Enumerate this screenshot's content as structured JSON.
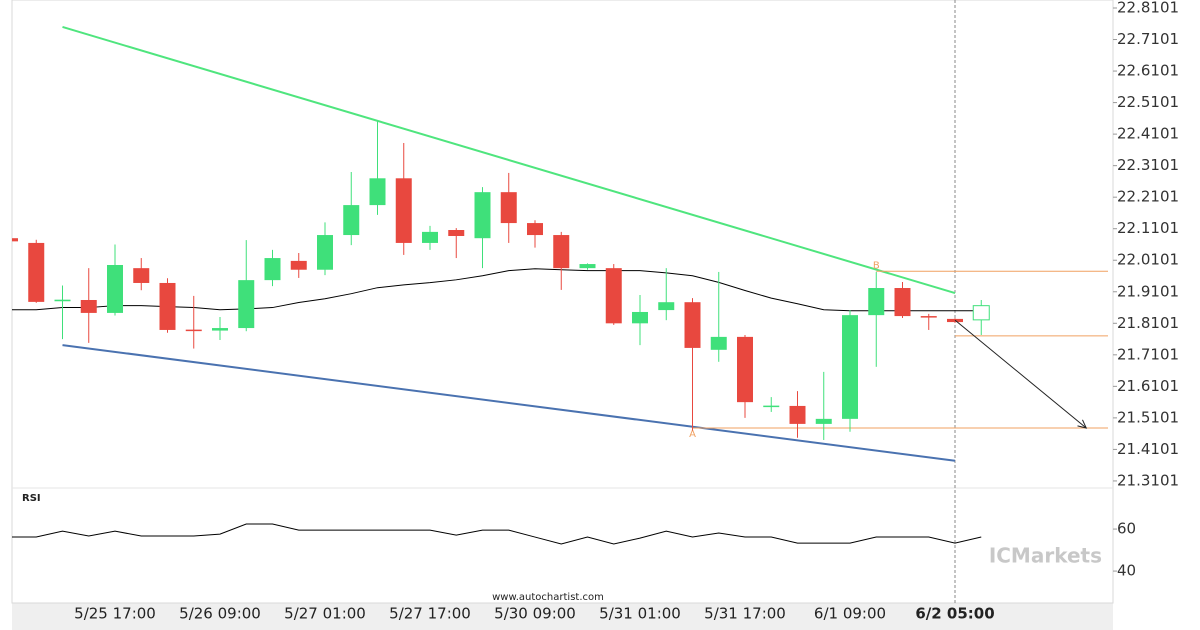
{
  "chart_data": {
    "type": "candlestick",
    "categories": [
      null,
      null,
      null,
      null,
      "5/25 17:00",
      null,
      null,
      null,
      "5/26 09:00",
      null,
      null,
      null,
      "5/27 01:00",
      null,
      null,
      null,
      "5/27 17:00",
      null,
      null,
      null,
      "5/30 09:00",
      null,
      null,
      null,
      "5/31 01:00",
      null,
      null,
      null,
      "5/31 17:00",
      null,
      null,
      null,
      "6/1 09:00",
      null,
      null,
      null,
      "6/2 05:00",
      null
    ],
    "current_index": 36,
    "open": [
      22.08,
      22.065,
      21.88,
      21.884,
      21.843,
      21.985,
      21.938,
      21.79,
      21.787,
      21.795,
      21.947,
      22.008,
      21.98,
      22.09,
      22.185,
      22.27,
      22.065,
      22.106,
      22.08,
      22.226,
      22.128,
      22.09,
      21.985,
      21.985,
      21.81,
      21.852,
      21.877,
      21.726,
      21.767,
      21.545,
      21.548,
      21.491,
      21.507,
      21.836,
      21.922,
      21.833,
      21.824,
      21.821
    ],
    "high": [
      22.09,
      22.075,
      21.93,
      21.985,
      22.06,
      22.017,
      21.953,
      21.897,
      21.83,
      22.074,
      22.043,
      22.033,
      22.13,
      22.29,
      22.45,
      22.382,
      22.119,
      22.112,
      22.242,
      22.287,
      22.137,
      22.1,
      22.0,
      21.998,
      21.9,
      21.985,
      21.89,
      21.973,
      21.773,
      21.576,
      21.595,
      21.656,
      21.852,
      21.973,
      21.941,
      21.84,
      21.826,
      21.884
    ],
    "low": [
      22.065,
      21.875,
      21.76,
      21.748,
      21.835,
      21.915,
      21.78,
      21.73,
      21.757,
      21.785,
      21.928,
      21.954,
      21.963,
      22.058,
      22.154,
      22.027,
      22.043,
      22.017,
      21.985,
      22.065,
      22.05,
      21.916,
      21.98,
      21.805,
      21.741,
      21.82,
      21.47,
      21.688,
      21.51,
      21.529,
      21.447,
      21.44,
      21.466,
      21.672,
      21.827,
      21.789,
      21.812,
      21.773
    ],
    "close": [
      22.07,
      21.878,
      21.885,
      21.843,
      21.995,
      21.938,
      21.789,
      21.787,
      21.795,
      21.947,
      22.017,
      21.98,
      22.09,
      22.185,
      22.27,
      22.065,
      22.1,
      22.087,
      22.226,
      22.128,
      22.09,
      21.985,
      21.998,
      21.81,
      21.846,
      21.877,
      21.732,
      21.767,
      21.56,
      21.549,
      21.491,
      21.507,
      21.836,
      21.922,
      21.833,
      21.83,
      21.814,
      21.866
    ],
    "up_color": "#3fe07a",
    "down_color": "#e8483f",
    "last_hollow": true,
    "ma": {
      "color": "#000000",
      "values": [
        21.853,
        21.853,
        21.86,
        21.86,
        21.866,
        21.866,
        21.863,
        21.86,
        21.853,
        21.856,
        21.86,
        21.876,
        21.888,
        21.904,
        21.923,
        21.932,
        21.939,
        21.948,
        21.961,
        21.977,
        21.983,
        21.98,
        21.977,
        21.977,
        21.977,
        21.97,
        21.961,
        21.94,
        21.914,
        21.89,
        21.872,
        21.853,
        21.85,
        21.85,
        21.85,
        21.85,
        21.85,
        21.85
      ]
    },
    "trend_lines": [
      {
        "color": "#4fe57e",
        "points": [
          [
            2,
            22.75
          ],
          [
            36,
            21.906
          ]
        ]
      },
      {
        "color": "#4a72b0",
        "points": [
          [
            2,
            21.741
          ],
          [
            36,
            21.374
          ]
        ]
      }
    ],
    "levels": [
      {
        "label": "B",
        "value": 21.975,
        "from": 33,
        "label_side": "above"
      },
      {
        "value": 21.77,
        "from": 36
      },
      {
        "label": "A",
        "value": 21.478,
        "from": 26,
        "label_side": "below"
      }
    ],
    "level_color": "#f0a060",
    "projection": {
      "from": [
        36,
        21.82
      ],
      "to": [
        41,
        21.478
      ]
    },
    "ylim": [
      21.2877,
      22.8355
    ],
    "yticks": [
      22.8101,
      22.7101,
      22.6101,
      22.5101,
      22.4101,
      22.3101,
      22.2101,
      22.1101,
      22.0101,
      21.9101,
      21.8101,
      21.7101,
      21.6101,
      21.5101,
      21.4101,
      21.3101
    ],
    "rsi": {
      "label": "RSI",
      "ylim": [
        24.8,
        78.6
      ],
      "yticks": [
        60,
        40
      ],
      "values": [
        56.2,
        56.2,
        59.0,
        56.7,
        59.0,
        56.7,
        56.7,
        56.7,
        57.6,
        62.4,
        62.4,
        59.5,
        59.5,
        59.5,
        59.5,
        59.5,
        59.5,
        57.1,
        59.5,
        59.5,
        56.2,
        52.9,
        56.2,
        52.9,
        55.7,
        59.0,
        56.2,
        58.1,
        56.2,
        56.2,
        53.3,
        53.3,
        53.3,
        56.2,
        56.2,
        56.2,
        53.3,
        56.2
      ]
    },
    "source": "www.autochartist.com",
    "watermark": "ICMarkets"
  }
}
